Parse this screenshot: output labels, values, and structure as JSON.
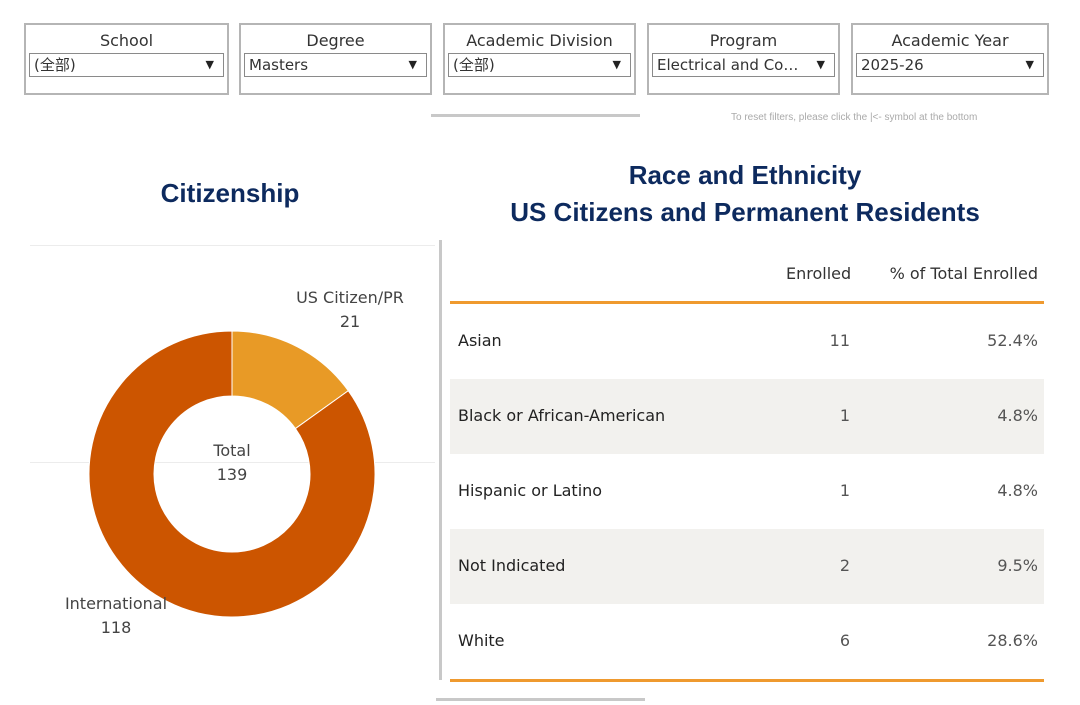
{
  "filters": [
    {
      "label": "School",
      "value": "(全部)"
    },
    {
      "label": "Degree",
      "value": "Masters"
    },
    {
      "label": "Academic Division",
      "value": "(全部)"
    },
    {
      "label": "Program",
      "value": "Electrical and Comp..."
    },
    {
      "label": "Academic Year",
      "value": "2025-26"
    }
  ],
  "reset_note": "To reset filters, please click the |<- symbol at the bottom",
  "citizenship": {
    "title": "Citizenship",
    "total_label": "Total",
    "total_value": "139"
  },
  "race": {
    "title_line1": "Race and Ethnicity",
    "title_line2": "US Citizens and Permanent Residents",
    "col_enrolled": "Enrolled",
    "col_pct": "% of Total Enrolled",
    "rows": [
      {
        "name": "Asian",
        "enrolled": "11",
        "pct": "52.4%"
      },
      {
        "name": "Black or African-American",
        "enrolled": "1",
        "pct": "4.8%"
      },
      {
        "name": "Hispanic or Latino",
        "enrolled": "1",
        "pct": "4.8%"
      },
      {
        "name": "Not Indicated",
        "enrolled": "2",
        "pct": "9.5%"
      },
      {
        "name": "White",
        "enrolled": "6",
        "pct": "28.6%"
      }
    ]
  },
  "colors": {
    "title": "#0d2a5e",
    "us_citizen": "#e89a26",
    "international": "#cc5500",
    "table_rule": "#ef9a2f",
    "alt_row": "#f2f1ee"
  },
  "chart_data": [
    {
      "type": "pie",
      "title": "Citizenship",
      "categories": [
        "US Citizen/PR",
        "International"
      ],
      "values": [
        21,
        118
      ],
      "total": 139,
      "colors": [
        "#e89a26",
        "#cc5500"
      ]
    },
    {
      "type": "table",
      "title": "Race and Ethnicity US Citizens and Permanent Residents",
      "columns": [
        "Enrolled",
        "% of Total Enrolled"
      ],
      "categories": [
        "Asian",
        "Black or African-American",
        "Hispanic or Latino",
        "Not Indicated",
        "White"
      ],
      "series": [
        {
          "name": "Enrolled",
          "values": [
            11,
            1,
            1,
            2,
            6
          ]
        },
        {
          "name": "% of Total Enrolled",
          "values": [
            52.4,
            4.8,
            4.8,
            9.5,
            28.6
          ]
        }
      ]
    }
  ]
}
